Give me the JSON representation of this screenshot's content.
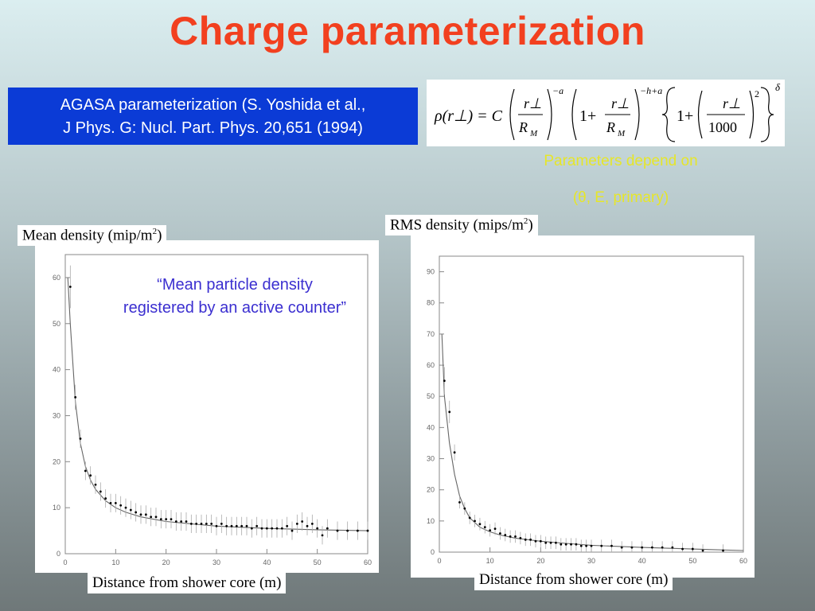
{
  "slide": {
    "title": "Charge parameterization",
    "reference": {
      "line1": "AGASA parameterization (S. Yoshida et al.,",
      "line2": "J Phys. G: Nucl. Part. Phys. 20,651 (1994)"
    },
    "formula": {
      "lhs": "ρ(r⊥) = C",
      "num": "r⊥",
      "den": "R",
      "den_sub": "M",
      "exp1": "−a",
      "exp2": "−h+a",
      "exp3": "2",
      "outer_exp": "δ",
      "one": "1+",
      "thousand": "1000"
    },
    "params_line1": "Parameters depend on",
    "params_line2": "(θ, E, primary)",
    "quote": "“Mean particle density registered by an active counter”",
    "colors": {
      "title": "#f2401f",
      "box": "#0b3bd6",
      "note": "#e6e62a",
      "quote": "#3b2fd0"
    }
  },
  "charts": {
    "mean": {
      "ylabel_text": "Mean density (mip/m",
      "ylabel_sup": "2",
      "ylabel_close": ")",
      "xlabel": "Distance from shower core (m)"
    },
    "rms": {
      "ylabel_text": "RMS density (mips/m",
      "ylabel_sup": "2",
      "ylabel_close": ")",
      "xlabel": "Distance from shower core (m)"
    }
  },
  "chart_data": [
    {
      "type": "scatter",
      "xlabel": "Distance from shower core (m)",
      "ylabel": "Mean density (mip/m2)",
      "xlim": [
        0,
        60
      ],
      "ylim": [
        0,
        65
      ],
      "xticks": [
        0,
        10,
        20,
        30,
        40,
        50,
        60
      ],
      "yticks": [
        0,
        10,
        20,
        30,
        40,
        50,
        60
      ],
      "points": [
        [
          1,
          58
        ],
        [
          2,
          34
        ],
        [
          3,
          25
        ],
        [
          4,
          18
        ],
        [
          5,
          17
        ],
        [
          6,
          15
        ],
        [
          7,
          13.5
        ],
        [
          8,
          12
        ],
        [
          9,
          11
        ],
        [
          10,
          11
        ],
        [
          11,
          10.5
        ],
        [
          12,
          10
        ],
        [
          13,
          9.5
        ],
        [
          14,
          9
        ],
        [
          15,
          8.5
        ],
        [
          16,
          8.5
        ],
        [
          17,
          8
        ],
        [
          18,
          8
        ],
        [
          19,
          7.5
        ],
        [
          20,
          7.5
        ],
        [
          21,
          7.5
        ],
        [
          22,
          7
        ],
        [
          23,
          7
        ],
        [
          24,
          7
        ],
        [
          25,
          6.5
        ],
        [
          26,
          6.5
        ],
        [
          27,
          6.5
        ],
        [
          28,
          6.5
        ],
        [
          29,
          6.5
        ],
        [
          30,
          6
        ],
        [
          31,
          6.5
        ],
        [
          32,
          6
        ],
        [
          33,
          6
        ],
        [
          34,
          6
        ],
        [
          35,
          6
        ],
        [
          36,
          6
        ],
        [
          37,
          5.5
        ],
        [
          38,
          6
        ],
        [
          39,
          5.5
        ],
        [
          40,
          5.5
        ],
        [
          41,
          5.5
        ],
        [
          42,
          5.5
        ],
        [
          43,
          5.5
        ],
        [
          44,
          6
        ],
        [
          45,
          5
        ],
        [
          46,
          6.5
        ],
        [
          47,
          7
        ],
        [
          48,
          6
        ],
        [
          49,
          6.5
        ],
        [
          50,
          5.5
        ],
        [
          51,
          4
        ],
        [
          52,
          5.5
        ],
        [
          54,
          5
        ],
        [
          56,
          5
        ],
        [
          58,
          5
        ],
        [
          60,
          5
        ]
      ],
      "fit": [
        [
          0.5,
          60
        ],
        [
          1,
          50
        ],
        [
          2,
          33
        ],
        [
          3,
          24
        ],
        [
          4,
          19
        ],
        [
          5,
          16
        ],
        [
          6,
          14
        ],
        [
          8,
          11.5
        ],
        [
          10,
          10
        ],
        [
          12,
          9
        ],
        [
          15,
          8
        ],
        [
          20,
          7
        ],
        [
          25,
          6.5
        ],
        [
          30,
          6
        ],
        [
          40,
          5.5
        ],
        [
          50,
          5.2
        ],
        [
          60,
          5
        ]
      ]
    },
    {
      "type": "scatter",
      "xlabel": "Distance from shower core (m)",
      "ylabel": "RMS density (mips/m2)",
      "xlim": [
        0,
        60
      ],
      "ylim": [
        0,
        95
      ],
      "xticks": [
        0,
        10,
        20,
        30,
        40,
        50,
        60
      ],
      "yticks": [
        0,
        10,
        20,
        30,
        40,
        50,
        60,
        70,
        80,
        90
      ],
      "points": [
        [
          1,
          55
        ],
        [
          2,
          45
        ],
        [
          3,
          32
        ],
        [
          4,
          16
        ],
        [
          5,
          14
        ],
        [
          6,
          11
        ],
        [
          7,
          10
        ],
        [
          8,
          9
        ],
        [
          9,
          8
        ],
        [
          10,
          7
        ],
        [
          11,
          7.5
        ],
        [
          12,
          6
        ],
        [
          13,
          5.5
        ],
        [
          14,
          5
        ],
        [
          15,
          5
        ],
        [
          16,
          4.5
        ],
        [
          17,
          4
        ],
        [
          18,
          4
        ],
        [
          19,
          3.5
        ],
        [
          20,
          3.5
        ],
        [
          21,
          3
        ],
        [
          22,
          3
        ],
        [
          23,
          3
        ],
        [
          24,
          2.5
        ],
        [
          25,
          2.5
        ],
        [
          26,
          2.5
        ],
        [
          27,
          2.5
        ],
        [
          28,
          2
        ],
        [
          29,
          2
        ],
        [
          30,
          2
        ],
        [
          32,
          2
        ],
        [
          34,
          2
        ],
        [
          36,
          1.5
        ],
        [
          38,
          1.5
        ],
        [
          40,
          1.5
        ],
        [
          42,
          1.5
        ],
        [
          44,
          1.5
        ],
        [
          46,
          1.5
        ],
        [
          48,
          1
        ],
        [
          50,
          1
        ],
        [
          52,
          0.5
        ],
        [
          56,
          0.5
        ]
      ],
      "fit": [
        [
          0.5,
          70
        ],
        [
          1,
          50
        ],
        [
          2,
          35
        ],
        [
          3,
          25
        ],
        [
          4,
          18
        ],
        [
          5,
          14
        ],
        [
          6,
          11
        ],
        [
          8,
          8
        ],
        [
          10,
          6.5
        ],
        [
          12,
          5.5
        ],
        [
          15,
          4.5
        ],
        [
          20,
          3.5
        ],
        [
          25,
          2.8
        ],
        [
          30,
          2.2
        ],
        [
          40,
          1.5
        ],
        [
          50,
          1
        ],
        [
          60,
          0.5
        ]
      ]
    }
  ]
}
